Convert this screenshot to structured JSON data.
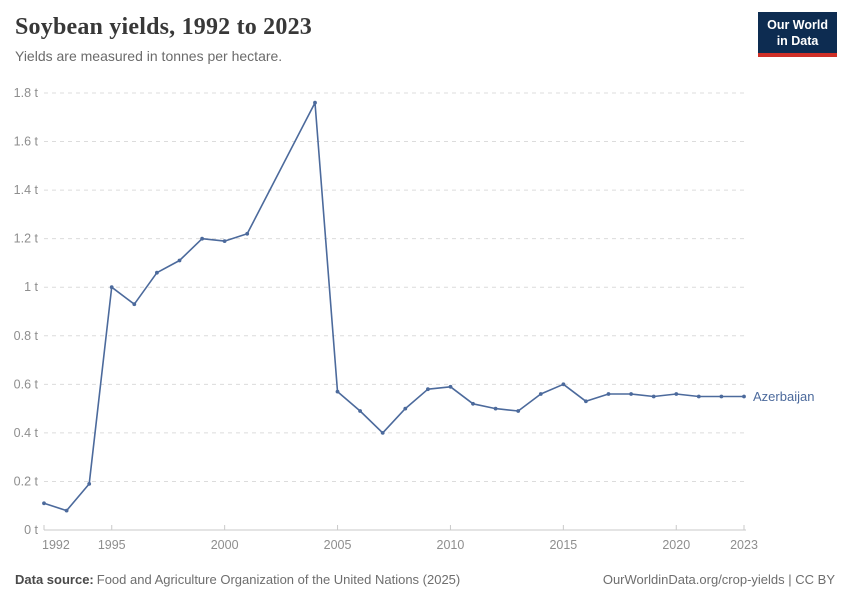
{
  "header": {
    "title": "Soybean yields, 1992 to 2023",
    "subtitle": "Yields are measured in tonnes per hectare.",
    "logo": {
      "line1": "Our World",
      "line2": "in Data",
      "bg_color": "#0d2c51",
      "accent_color": "#cf2f27"
    }
  },
  "footer": {
    "source_label": "Data source:",
    "source_text": "Food and Agriculture Organization of the United Nations (2025)",
    "right_text": "OurWorldinData.org/crop-yields | CC BY"
  },
  "chart_data": {
    "type": "line",
    "title": "Soybean yields, 1992 to 2023",
    "subtitle": "Yields are measured in tonnes per hectare.",
    "unit": "tonnes per hectare",
    "x_range": [
      1992,
      2023
    ],
    "y_range": [
      0,
      1.8
    ],
    "grid": "horizontal-dashed",
    "legend_position": "end-of-line-label",
    "x_ticks": [
      {
        "value": 1992,
        "label": "1992"
      },
      {
        "value": 1995,
        "label": "1995"
      },
      {
        "value": 2000,
        "label": "2000"
      },
      {
        "value": 2005,
        "label": "2005"
      },
      {
        "value": 2010,
        "label": "2010"
      },
      {
        "value": 2015,
        "label": "2015"
      },
      {
        "value": 2020,
        "label": "2020"
      },
      {
        "value": 2023,
        "label": "2023"
      }
    ],
    "y_ticks": [
      {
        "value": 0,
        "label": "0 t"
      },
      {
        "value": 0.2,
        "label": "0.2 t"
      },
      {
        "value": 0.4,
        "label": "0.4 t"
      },
      {
        "value": 0.6,
        "label": "0.6 t"
      },
      {
        "value": 0.8,
        "label": "0.8 t"
      },
      {
        "value": 1,
        "label": "1 t"
      },
      {
        "value": 1.2,
        "label": "1.2 t"
      },
      {
        "value": 1.4,
        "label": "1.4 t"
      },
      {
        "value": 1.6,
        "label": "1.6 t"
      },
      {
        "value": 1.8,
        "label": "1.8 t"
      }
    ],
    "series": [
      {
        "name": "Azerbaijan",
        "color": "#4C6A9C",
        "points": [
          [
            1992,
            0.11
          ],
          [
            1993,
            0.08
          ],
          [
            1994,
            0.19
          ],
          [
            1995,
            1.0
          ],
          [
            1996,
            0.93
          ],
          [
            1997,
            1.06
          ],
          [
            1998,
            1.11
          ],
          [
            1999,
            1.2
          ],
          [
            2000,
            1.19
          ],
          [
            2001,
            1.22
          ],
          [
            2004,
            1.76
          ],
          [
            2005,
            0.57
          ],
          [
            2006,
            0.49
          ],
          [
            2007,
            0.4
          ],
          [
            2008,
            0.5
          ],
          [
            2009,
            0.58
          ],
          [
            2010,
            0.59
          ],
          [
            2011,
            0.52
          ],
          [
            2012,
            0.5
          ],
          [
            2013,
            0.49
          ],
          [
            2014,
            0.56
          ],
          [
            2015,
            0.6
          ],
          [
            2016,
            0.53
          ],
          [
            2017,
            0.56
          ],
          [
            2018,
            0.56
          ],
          [
            2019,
            0.55
          ],
          [
            2020,
            0.56
          ],
          [
            2021,
            0.55
          ],
          [
            2022,
            0.55
          ],
          [
            2023,
            0.55
          ]
        ]
      }
    ]
  }
}
